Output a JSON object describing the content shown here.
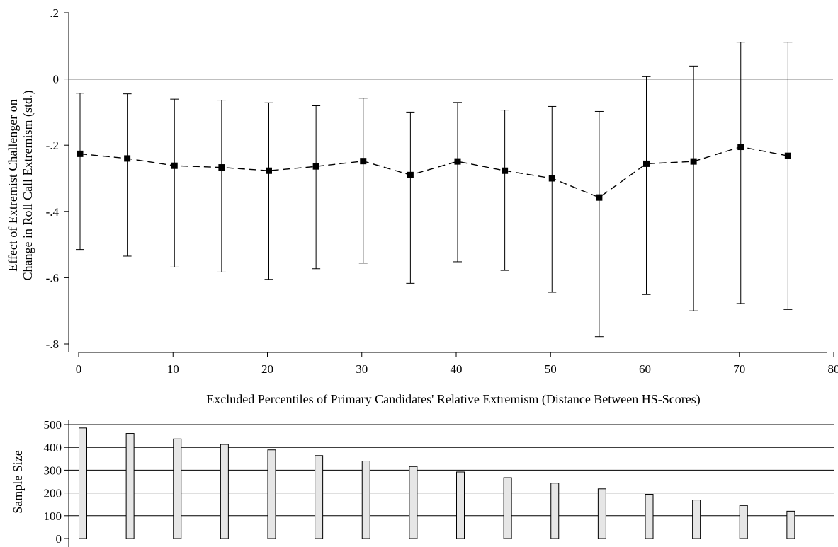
{
  "chart_data": [
    {
      "type": "scatter",
      "xlabel": "Excluded Percentiles of Primary Candidates' Relative Extremism (Distance Between HS-Scores)",
      "ylabel_lines": [
        "Effect of Extremist Challenger on",
        "Change in Roll Call Extremism (std.)"
      ],
      "xlim": [
        0,
        80
      ],
      "ylim": [
        -0.8,
        0.2
      ],
      "x_ticks": [
        0,
        10,
        20,
        30,
        40,
        50,
        60,
        70,
        80
      ],
      "x_tick_labels": [
        "0",
        "10",
        "20",
        "30",
        "40",
        "50",
        "60",
        "70",
        "80"
      ],
      "y_ticks": [
        0.2,
        0,
        -0.2,
        -0.4,
        -0.6,
        -0.8
      ],
      "y_tick_labels": [
        ".2",
        "0",
        "-.2",
        "-.4",
        "-.6",
        "-.8"
      ],
      "reference_line_y": 0,
      "grid": false,
      "marker_color": "#000000",
      "points": [
        {
          "x": 0,
          "y": -0.226,
          "lo": -0.515,
          "hi": -0.043
        },
        {
          "x": 5,
          "y": -0.24,
          "lo": -0.535,
          "hi": -0.045
        },
        {
          "x": 10,
          "y": -0.262,
          "lo": -0.568,
          "hi": -0.061
        },
        {
          "x": 15,
          "y": -0.267,
          "lo": -0.583,
          "hi": -0.064
        },
        {
          "x": 20,
          "y": -0.277,
          "lo": -0.605,
          "hi": -0.072
        },
        {
          "x": 25,
          "y": -0.264,
          "lo": -0.573,
          "hi": -0.081
        },
        {
          "x": 30,
          "y": -0.248,
          "lo": -0.556,
          "hi": -0.058
        },
        {
          "x": 35,
          "y": -0.29,
          "lo": -0.617,
          "hi": -0.1
        },
        {
          "x": 40,
          "y": -0.249,
          "lo": -0.552,
          "hi": -0.071
        },
        {
          "x": 45,
          "y": -0.277,
          "lo": -0.578,
          "hi": -0.094
        },
        {
          "x": 50,
          "y": -0.3,
          "lo": -0.644,
          "hi": -0.083
        },
        {
          "x": 55,
          "y": -0.358,
          "lo": -0.778,
          "hi": -0.098
        },
        {
          "x": 60,
          "y": -0.256,
          "lo": -0.651,
          "hi": 0.007
        },
        {
          "x": 65,
          "y": -0.249,
          "lo": -0.7,
          "hi": 0.039
        },
        {
          "x": 70,
          "y": -0.205,
          "lo": -0.678,
          "hi": 0.111
        },
        {
          "x": 75,
          "y": -0.232,
          "lo": -0.696,
          "hi": 0.111
        }
      ]
    },
    {
      "type": "bar",
      "ylabel": "Sample Size",
      "ylim": [
        0,
        500
      ],
      "y_ticks": [
        0,
        100,
        200,
        300,
        400,
        500
      ],
      "y_tick_labels": [
        "0",
        "100",
        "200",
        "300",
        "400",
        "500"
      ],
      "grid": true,
      "bar_color": "#e6e6e6",
      "x": [
        0,
        5,
        10,
        15,
        20,
        25,
        30,
        35,
        40,
        45,
        50,
        55,
        60,
        65,
        70,
        75
      ],
      "values": [
        485,
        461,
        437,
        413,
        389,
        364,
        340,
        316,
        292,
        267,
        243,
        218,
        194,
        169,
        145,
        120
      ]
    }
  ]
}
